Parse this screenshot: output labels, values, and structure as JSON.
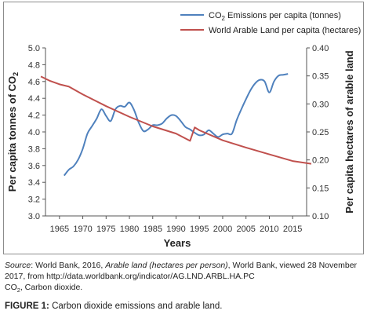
{
  "chart_data": {
    "type": "line",
    "title": "",
    "xlabel": "Years",
    "ylabel_left_prefix": "Per capita tonnes of CO",
    "ylabel_left_sub": "2",
    "ylabel_right": "Per capita hectares of arable land",
    "xlim": [
      1962,
      2018
    ],
    "x_ticks": [
      1965,
      1970,
      1975,
      1980,
      1985,
      1990,
      1995,
      2000,
      2005,
      2010,
      2015
    ],
    "ylim_left": [
      3.0,
      5.0
    ],
    "y_ticks_left": [
      "3.0",
      "3.2",
      "3.4",
      "3.6",
      "3.8",
      "4.0",
      "4.2",
      "4.4",
      "4.6",
      "4.8",
      "5.0"
    ],
    "ylim_right": [
      0.1,
      0.4
    ],
    "y_ticks_right": [
      "0.10",
      "0.15",
      "0.20",
      "0.25",
      "0.30",
      "0.35",
      "0.40"
    ],
    "grid": false,
    "legend_position": "top-right",
    "series": [
      {
        "name_prefix": "CO",
        "name_sub": "2",
        "name_suffix": " Emissions per capita (tonnes)",
        "axis": "left",
        "color": "#4f81bd",
        "x": [
          1966,
          1967,
          1968,
          1969,
          1970,
          1971,
          1972,
          1973,
          1974,
          1975,
          1976,
          1977,
          1978,
          1979,
          1980,
          1981,
          1982,
          1983,
          1984,
          1985,
          1986,
          1987,
          1988,
          1989,
          1990,
          1991,
          1992,
          1993,
          1994,
          1995,
          1996,
          1997,
          1998,
          1999,
          2000,
          2001,
          2002,
          2003,
          2004,
          2005,
          2006,
          2007,
          2008,
          2009,
          2010,
          2011,
          2012,
          2013,
          2014
        ],
        "values": [
          3.48,
          3.55,
          3.59,
          3.67,
          3.8,
          3.98,
          4.07,
          4.16,
          4.27,
          4.19,
          4.13,
          4.27,
          4.31,
          4.3,
          4.35,
          4.26,
          4.11,
          4.01,
          4.03,
          4.08,
          4.08,
          4.1,
          4.16,
          4.2,
          4.19,
          4.13,
          4.06,
          4.03,
          3.99,
          3.96,
          3.97,
          4.02,
          3.98,
          3.94,
          3.97,
          3.98,
          3.98,
          4.14,
          4.27,
          4.39,
          4.5,
          4.58,
          4.62,
          4.6,
          4.47,
          4.6,
          4.67,
          4.68,
          4.69
        ]
      },
      {
        "name": "World Arable Land per capita (hectares)",
        "axis": "right",
        "color": "#c0504d",
        "x": [
          1961,
          1963,
          1965,
          1967,
          1970,
          1975,
          1980,
          1985,
          1990,
          1993,
          1994,
          1995,
          2000,
          2005,
          2010,
          2015,
          2019
        ],
        "values": [
          0.349,
          0.341,
          0.335,
          0.331,
          0.317,
          0.296,
          0.277,
          0.26,
          0.247,
          0.234,
          0.258,
          0.253,
          0.235,
          0.222,
          0.21,
          0.198,
          0.193
        ]
      }
    ]
  },
  "source": {
    "label": "Source",
    "text_before_title": ": World Bank, 2016, ",
    "title_italic": "Arable land (hectares per person)",
    "text_after_title": ", World Bank, viewed 28 November 2017, from http://data.worldbank.org/indicator/AG.LND.ARBL.HA.PC"
  },
  "abbreviation": {
    "prefix": "CO",
    "sub": "2",
    "suffix": ", Carbon dioxide."
  },
  "caption": {
    "label": "FIGURE 1:",
    "text": " Carbon dioxide emissions and arable land."
  }
}
